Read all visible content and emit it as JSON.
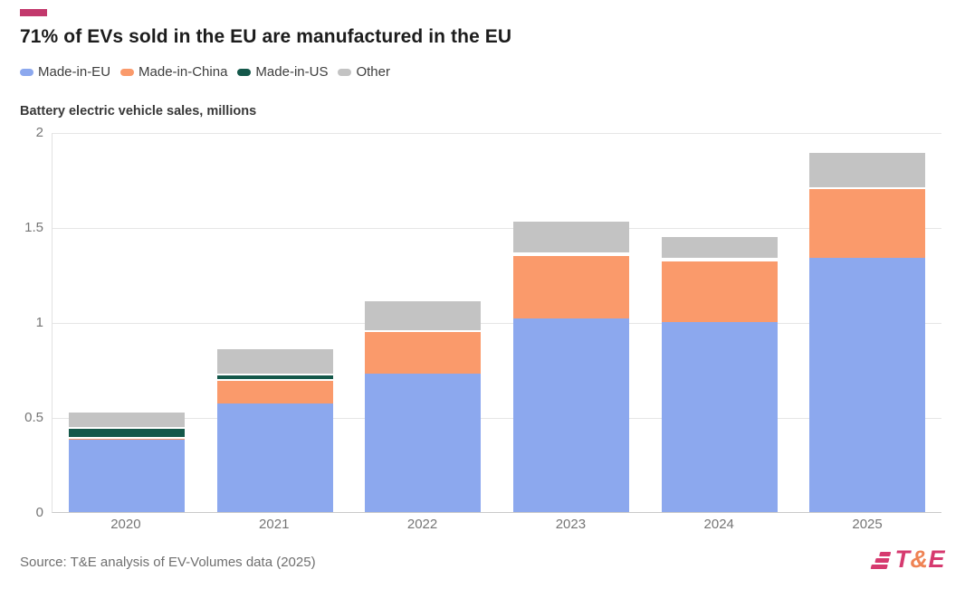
{
  "header": {
    "accent_color": "#c2386c",
    "title": "71% of EVs sold in the EU are manufactured in the EU"
  },
  "legend": [
    {
      "label": "Made-in-EU",
      "color": "#8ca8ee"
    },
    {
      "label": "Made-in-China",
      "color": "#fa9a6b"
    },
    {
      "label": "Made-in-US",
      "color": "#14584a"
    },
    {
      "label": "Other",
      "color": "#c3c3c3"
    }
  ],
  "chart_data": {
    "type": "bar",
    "stacked": true,
    "title": "Battery electric vehicle sales, millions",
    "categories": [
      "2020",
      "2021",
      "2022",
      "2023",
      "2024",
      "2025"
    ],
    "series": [
      {
        "name": "Made-in-EU",
        "color": "#8ca8ee",
        "values": [
          0.38,
          0.57,
          0.73,
          1.02,
          1.0,
          1.34
        ]
      },
      {
        "name": "Made-in-China",
        "color": "#fa9a6b",
        "values": [
          0.015,
          0.13,
          0.23,
          0.34,
          0.33,
          0.37
        ]
      },
      {
        "name": "Made-in-US",
        "color": "#14584a",
        "values": [
          0.05,
          0.03,
          0,
          0.01,
          0.01,
          0
        ]
      },
      {
        "name": "Other",
        "color": "#c3c3c3",
        "values": [
          0.085,
          0.14,
          0.16,
          0.17,
          0.12,
          0.19
        ]
      }
    ],
    "totals": [
      0.53,
      0.87,
      1.12,
      1.54,
      1.46,
      1.9
    ],
    "ylim": [
      0,
      2
    ],
    "yticks": [
      "0",
      "0.5",
      "1",
      "1.5",
      "2"
    ],
    "grid": true,
    "legend_position": "top"
  },
  "footer": {
    "source": "Source: T&E analysis of EV-Volumes data (2025)",
    "logo": {
      "t": "T",
      "amp": "&",
      "e": "E",
      "pink": "#d63a6f",
      "orange": "#ef8354"
    }
  }
}
